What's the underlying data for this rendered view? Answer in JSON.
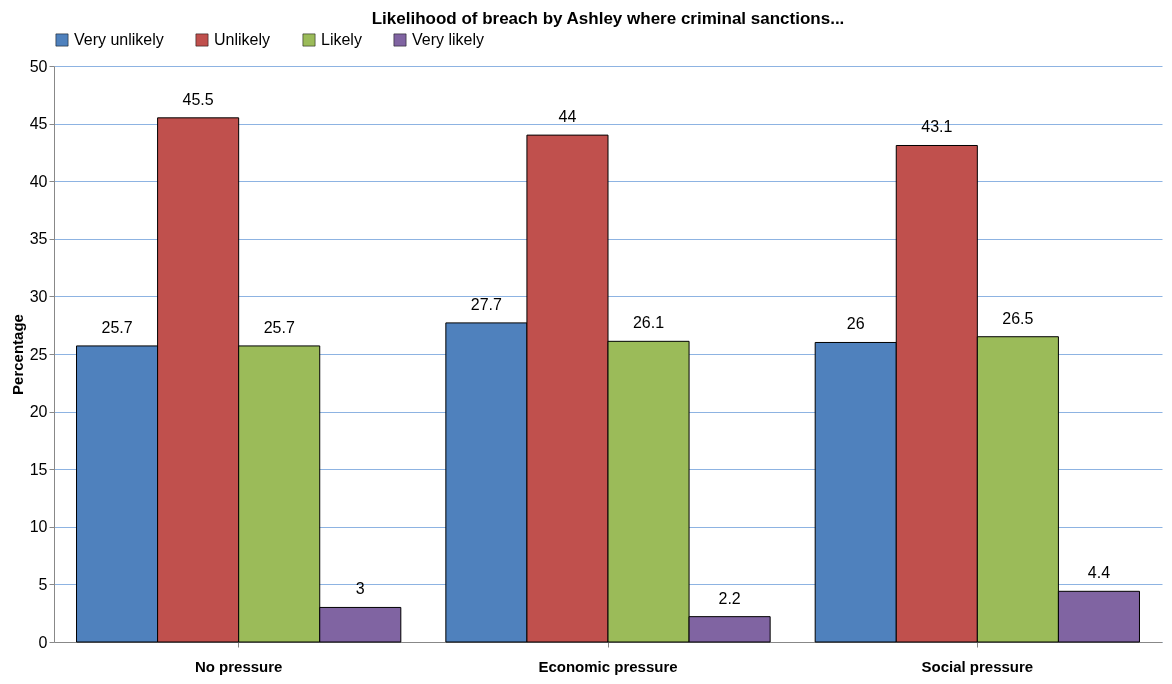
{
  "chart_data": {
    "type": "bar",
    "title": "Likelihood of breach by Ashley where criminal sanctions...",
    "ylabel": "Percentage",
    "categories": [
      "No pressure",
      "Economic pressure",
      "Social pressure"
    ],
    "series": [
      {
        "name": "Very unlikely",
        "color": "#4f81bd",
        "values": [
          25.7,
          27.7,
          26
        ]
      },
      {
        "name": "Unlikely",
        "color": "#c0504d",
        "values": [
          45.5,
          44,
          43.1
        ]
      },
      {
        "name": "Likely",
        "color": "#9bbb59",
        "values": [
          25.7,
          26.1,
          26.5
        ]
      },
      {
        "name": "Very likely",
        "color": "#8064a2",
        "values": [
          3,
          2.2,
          4.4
        ]
      }
    ],
    "ylim": [
      0,
      50
    ],
    "yticks": [
      0,
      5,
      10,
      15,
      20,
      25,
      30,
      35,
      40,
      45,
      50
    ],
    "grid": "y",
    "legend": "top",
    "data_labels": true
  }
}
